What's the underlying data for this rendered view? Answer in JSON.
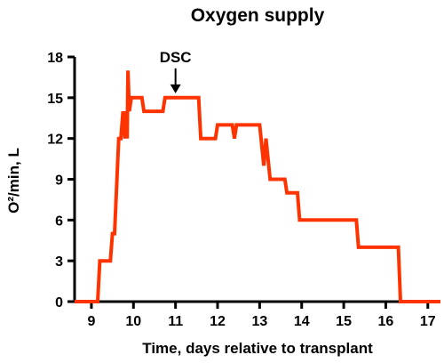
{
  "chart_data": {
    "type": "line",
    "title": "Oxygen supply",
    "xlabel": "Time, days relative to transplant",
    "ylabel": "O²/min, L",
    "xlim": [
      8.6,
      17.3
    ],
    "ylim": [
      0,
      18
    ],
    "xticks": [
      "9",
      "10",
      "11",
      "12",
      "13",
      "14",
      "15",
      "16",
      "17"
    ],
    "yticks": [
      "0",
      "3",
      "6",
      "9",
      "12",
      "15",
      "18"
    ],
    "grid": false,
    "line_color": "#ff3300",
    "annotation": {
      "label": "DSC",
      "x": 11.0,
      "y": 15
    },
    "series": [
      {
        "x": [
          8.6,
          9.15,
          9.2,
          9.45,
          9.5,
          9.55,
          9.65,
          9.7,
          9.75,
          9.8,
          9.82,
          9.85,
          9.87,
          9.9,
          9.95,
          10.0,
          10.2,
          10.25,
          10.7,
          10.75,
          11.2,
          11.25,
          11.55,
          11.6,
          11.95,
          12.0,
          12.35,
          12.4,
          12.45,
          12.5,
          12.95,
          13.0,
          13.1,
          13.15,
          13.25,
          13.35,
          13.4,
          13.6,
          13.65,
          13.9,
          13.95,
          14.6,
          14.65,
          15.3,
          15.35,
          16.3,
          16.35,
          17.3
        ],
        "y": [
          0,
          0,
          3,
          3,
          5,
          5,
          12,
          12,
          14,
          12,
          14,
          12,
          17,
          14,
          15,
          15,
          15,
          14,
          14,
          15,
          15,
          15,
          15,
          12,
          12,
          13,
          13,
          12,
          13,
          13,
          13,
          13,
          10,
          12,
          9,
          9,
          9,
          9,
          8,
          8,
          6,
          6,
          6,
          6,
          4,
          4,
          0,
          0
        ]
      }
    ]
  }
}
